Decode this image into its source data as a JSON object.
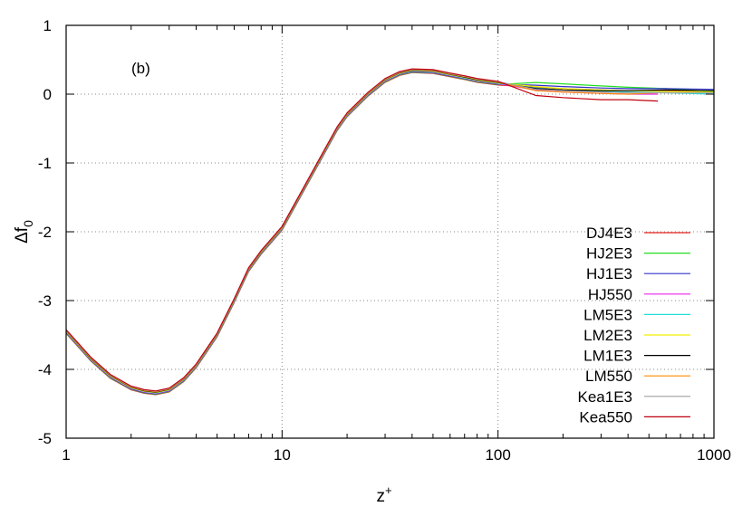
{
  "chart_data": {
    "type": "line",
    "annotation": "(b)",
    "xlabel": "z",
    "xlabel_sup": "+",
    "ylabel": "Δf",
    "ylabel_sub": "0",
    "x_scale": "log",
    "xlim": [
      1,
      1000
    ],
    "ylim": [
      -5,
      1
    ],
    "x_ticks": [
      1,
      10,
      100,
      1000
    ],
    "x_tick_labels": [
      "1",
      "10",
      "100",
      "1000"
    ],
    "y_ticks": [
      1,
      0,
      -1,
      -2,
      -3,
      -4,
      -5
    ],
    "y_tick_labels": [
      "1",
      "0",
      "-1",
      "-2",
      "-3",
      "-4",
      "-5"
    ],
    "grid": "dotted",
    "legend_position": "bottom-right",
    "base_curve": {
      "x": [
        1,
        1.3,
        1.6,
        2,
        2.3,
        2.6,
        3,
        3.5,
        4,
        5,
        6,
        7,
        8,
        10,
        12,
        15,
        18,
        20,
        25,
        30,
        35,
        40,
        50,
        60,
        70,
        80,
        100
      ],
      "y": [
        -3.45,
        -3.85,
        -4.1,
        -4.27,
        -4.32,
        -4.34,
        -4.3,
        -4.15,
        -3.95,
        -3.5,
        -3.0,
        -2.55,
        -2.3,
        -1.95,
        -1.5,
        -0.95,
        -0.5,
        -0.3,
        0.0,
        0.2,
        0.3,
        0.34,
        0.33,
        0.28,
        0.24,
        0.2,
        0.16
      ]
    },
    "series": [
      {
        "name": "DJ4E3",
        "color": "#e8201c",
        "x": [
          100,
          150,
          200,
          300,
          400,
          600,
          1000
        ],
        "y": [
          0.14,
          0.1,
          0.08,
          0.06,
          0.05,
          0.05,
          0.05
        ]
      },
      {
        "name": "HJ2E3",
        "color": "#22e022",
        "x": [
          100,
          150,
          200,
          300,
          400,
          600,
          1000
        ],
        "y": [
          0.2,
          0.17,
          0.15,
          0.12,
          0.1,
          0.08,
          0.04
        ]
      },
      {
        "name": "HJ1E3",
        "color": "#3030c8",
        "x": [
          100,
          150,
          200,
          300,
          400,
          600,
          1000
        ],
        "y": [
          0.17,
          0.13,
          0.11,
          0.09,
          0.08,
          0.08,
          0.07
        ]
      },
      {
        "name": "HJ550",
        "color": "#ee22ee",
        "x": [
          100,
          150,
          200,
          300,
          400,
          550
        ],
        "y": [
          0.1,
          0.06,
          0.03,
          0.01,
          0.0,
          0.0
        ]
      },
      {
        "name": "LM5E3",
        "color": "#22dddd",
        "x": [
          100,
          150,
          200,
          300,
          400,
          600,
          1000
        ],
        "y": [
          0.13,
          0.09,
          0.06,
          0.04,
          0.03,
          0.02,
          0.0
        ]
      },
      {
        "name": "LM2E3",
        "color": "#f0f000",
        "x": [
          100,
          150,
          200,
          300,
          400,
          600,
          1000
        ],
        "y": [
          0.15,
          0.11,
          0.08,
          0.06,
          0.05,
          0.04,
          0.03
        ]
      },
      {
        "name": "LM1E3",
        "color": "#000000",
        "x": [
          100,
          150,
          200,
          300,
          400,
          600,
          1000
        ],
        "y": [
          0.12,
          0.08,
          0.06,
          0.05,
          0.05,
          0.06,
          0.05
        ]
      },
      {
        "name": "LM550",
        "color": "#ff8c00",
        "x": [
          100,
          150,
          200,
          300,
          400,
          550
        ],
        "y": [
          0.09,
          0.05,
          0.03,
          0.01,
          0.0,
          0.02
        ]
      },
      {
        "name": "Kea1E3",
        "color": "#a0a0a0",
        "x": [
          100,
          150,
          200,
          300,
          400,
          600,
          1000
        ],
        "y": [
          0.11,
          0.07,
          0.05,
          0.03,
          0.02,
          0.02,
          0.02
        ]
      },
      {
        "name": "Kea550",
        "color": "#c00010",
        "x": [
          100,
          150,
          200,
          300,
          400,
          550
        ],
        "y": [
          0.03,
          -0.02,
          -0.05,
          -0.08,
          -0.08,
          -0.1
        ]
      }
    ]
  }
}
